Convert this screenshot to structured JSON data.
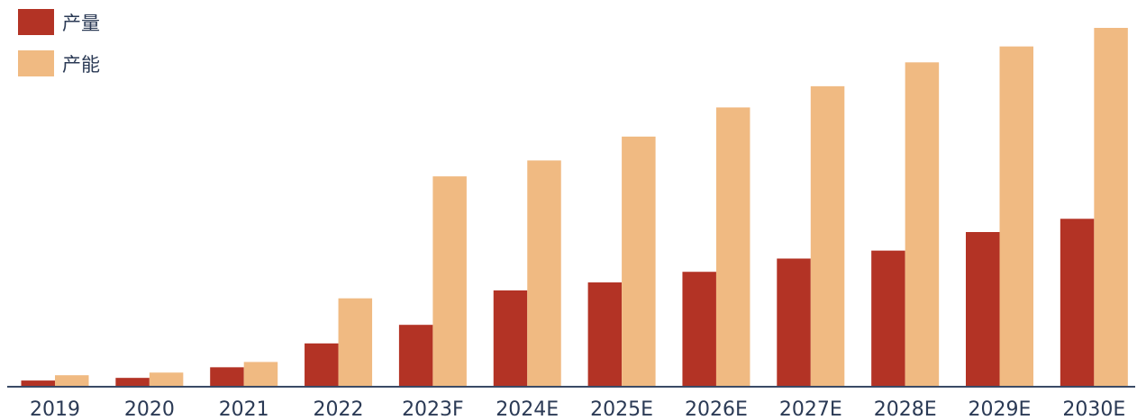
{
  "chart_data": {
    "type": "bar",
    "title": "",
    "xlabel": "",
    "ylabel": "",
    "categories": [
      "2019",
      "2020",
      "2021",
      "2022",
      "2023F",
      "2024E",
      "2025E",
      "2026E",
      "2027E",
      "2028E",
      "2029E",
      "2030E"
    ],
    "series": [
      {
        "name": "产量",
        "color": "#b33325",
        "values": [
          2,
          3,
          7,
          16,
          23,
          36,
          39,
          43,
          48,
          51,
          58,
          63
        ]
      },
      {
        "name": "产能",
        "color": "#f0ba82",
        "values": [
          4,
          5,
          9,
          33,
          79,
          85,
          94,
          105,
          113,
          122,
          128,
          135
        ]
      }
    ],
    "ylim": [
      0,
      135
    ],
    "grid": false,
    "y_axis_visible": false,
    "legend": "top-left"
  }
}
